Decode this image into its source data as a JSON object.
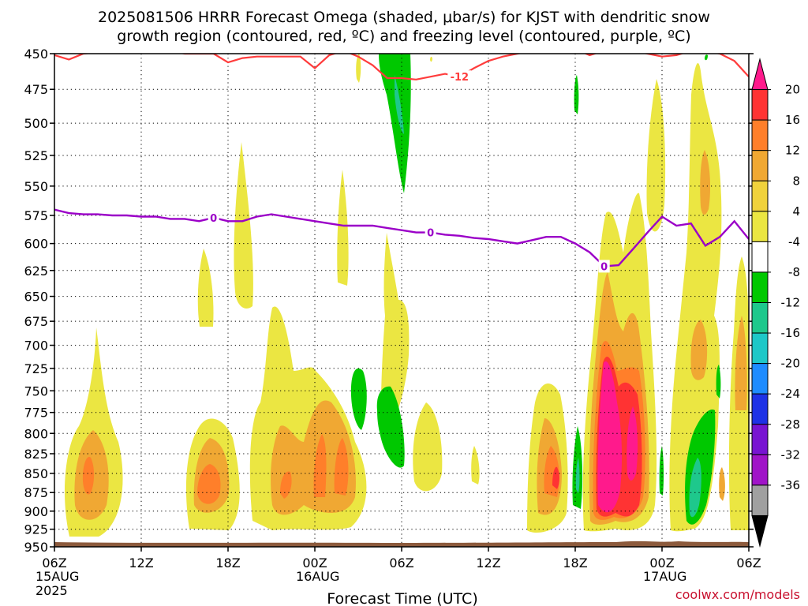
{
  "chart_data": {
    "type": "heatmap",
    "title_lines": [
      "2025081506 HRRR Forecast Omega (shaded, μbar/s) for KJST with dendritic snow",
      "growth region (contoured, red, ºC) and freezing level (contoured, purple, ºC)"
    ],
    "xlabel": "Forecast Time (UTC)",
    "credit": "coolwx.com/models",
    "x_ticks": [
      {
        "label": "06Z",
        "hour": 0,
        "date": "15AUG",
        "year": "2025"
      },
      {
        "label": "12Z",
        "hour": 6
      },
      {
        "label": "18Z",
        "hour": 12
      },
      {
        "label": "00Z",
        "hour": 18,
        "date": "16AUG"
      },
      {
        "label": "06Z",
        "hour": 24
      },
      {
        "label": "12Z",
        "hour": 30
      },
      {
        "label": "18Z",
        "hour": 36
      },
      {
        "label": "00Z",
        "hour": 42,
        "date": "17AUG"
      },
      {
        "label": "06Z",
        "hour": 48
      }
    ],
    "xlim": [
      0,
      48
    ],
    "y_levels": [
      450,
      475,
      500,
      525,
      550,
      575,
      600,
      625,
      650,
      675,
      700,
      725,
      750,
      775,
      800,
      825,
      850,
      875,
      900,
      925,
      950
    ],
    "ylim": [
      450,
      950
    ],
    "y_scale": "log-pressure",
    "grid": true,
    "colorbar": {
      "labels": [
        "20",
        "16",
        "12",
        "8",
        "4",
        "-4",
        "-8",
        "-12",
        "-16",
        "-20",
        "-24",
        "-28",
        "-32",
        "-36"
      ],
      "colors": [
        "#ff1a8c",
        "#ff3333",
        "#ff7f2a",
        "#f0a833",
        "#f0d23c",
        "#ebe642",
        "#ffffff",
        "#00c800",
        "#1ec88c",
        "#1ec8c8",
        "#1e8cff",
        "#1e32e6",
        "#7814d2",
        "#a014c8",
        "#a0a0a0",
        "#000000"
      ]
    },
    "freezing_level": {
      "label": "0",
      "color": "#9b00c8",
      "points": [
        [
          0,
          570
        ],
        [
          1,
          573
        ],
        [
          2,
          574
        ],
        [
          3,
          574
        ],
        [
          4,
          575
        ],
        [
          5,
          575
        ],
        [
          6,
          576
        ],
        [
          7,
          576
        ],
        [
          8,
          578
        ],
        [
          9,
          578
        ],
        [
          10,
          580
        ],
        [
          11,
          577
        ],
        [
          12,
          580
        ],
        [
          13,
          580
        ],
        [
          14,
          576
        ],
        [
          15,
          574
        ],
        [
          16,
          576
        ],
        [
          17,
          578
        ],
        [
          18,
          580
        ],
        [
          19,
          582
        ],
        [
          20,
          584
        ],
        [
          21,
          584
        ],
        [
          22,
          584
        ],
        [
          23,
          586
        ],
        [
          24,
          588
        ],
        [
          25,
          590
        ],
        [
          26,
          590
        ],
        [
          27,
          592
        ],
        [
          28,
          593
        ],
        [
          29,
          595
        ],
        [
          30,
          596
        ],
        [
          31,
          598
        ],
        [
          32,
          600
        ],
        [
          33,
          597
        ],
        [
          34,
          594
        ],
        [
          35,
          594
        ],
        [
          36,
          600
        ],
        [
          37,
          608
        ],
        [
          38,
          621
        ],
        [
          39,
          620
        ],
        [
          40,
          605
        ],
        [
          41,
          590
        ],
        [
          42,
          576
        ],
        [
          43,
          584
        ],
        [
          44,
          582
        ],
        [
          45,
          602
        ],
        [
          46,
          594
        ],
        [
          47,
          580
        ],
        [
          48,
          596
        ]
      ]
    },
    "dgz_line": {
      "label": "-12",
      "color": "#ff3c3c",
      "points": [
        [
          0,
          451
        ],
        [
          1,
          454
        ],
        [
          2,
          450
        ],
        [
          3,
          449
        ],
        [
          4,
          449
        ],
        [
          5,
          448
        ],
        [
          6,
          448
        ],
        [
          7,
          448
        ],
        [
          8,
          448
        ],
        [
          9,
          450
        ],
        [
          10,
          450
        ],
        [
          11,
          450
        ],
        [
          12,
          456
        ],
        [
          13,
          453
        ],
        [
          14,
          452
        ],
        [
          15,
          452
        ],
        [
          16,
          452
        ],
        [
          17,
          452
        ],
        [
          18,
          460
        ],
        [
          19,
          451
        ],
        [
          20,
          448
        ],
        [
          21,
          452
        ],
        [
          22,
          458
        ],
        [
          23,
          467
        ],
        [
          24,
          467
        ],
        [
          25,
          468
        ],
        [
          26,
          466
        ],
        [
          27,
          464
        ],
        [
          28,
          466
        ],
        [
          29,
          460
        ],
        [
          30,
          455
        ],
        [
          31,
          452
        ],
        [
          32,
          450
        ],
        [
          33,
          448
        ],
        [
          34,
          449
        ],
        [
          35,
          446
        ],
        [
          36,
          447
        ],
        [
          37,
          451
        ],
        [
          38,
          448
        ],
        [
          39,
          445
        ],
        [
          40,
          448
        ],
        [
          41,
          450
        ],
        [
          42,
          452
        ],
        [
          43,
          451
        ],
        [
          44,
          448
        ],
        [
          45,
          448
        ],
        [
          46,
          450
        ],
        [
          47,
          455
        ],
        [
          48,
          466
        ]
      ]
    },
    "terrain_color": "#8c5a3c"
  }
}
